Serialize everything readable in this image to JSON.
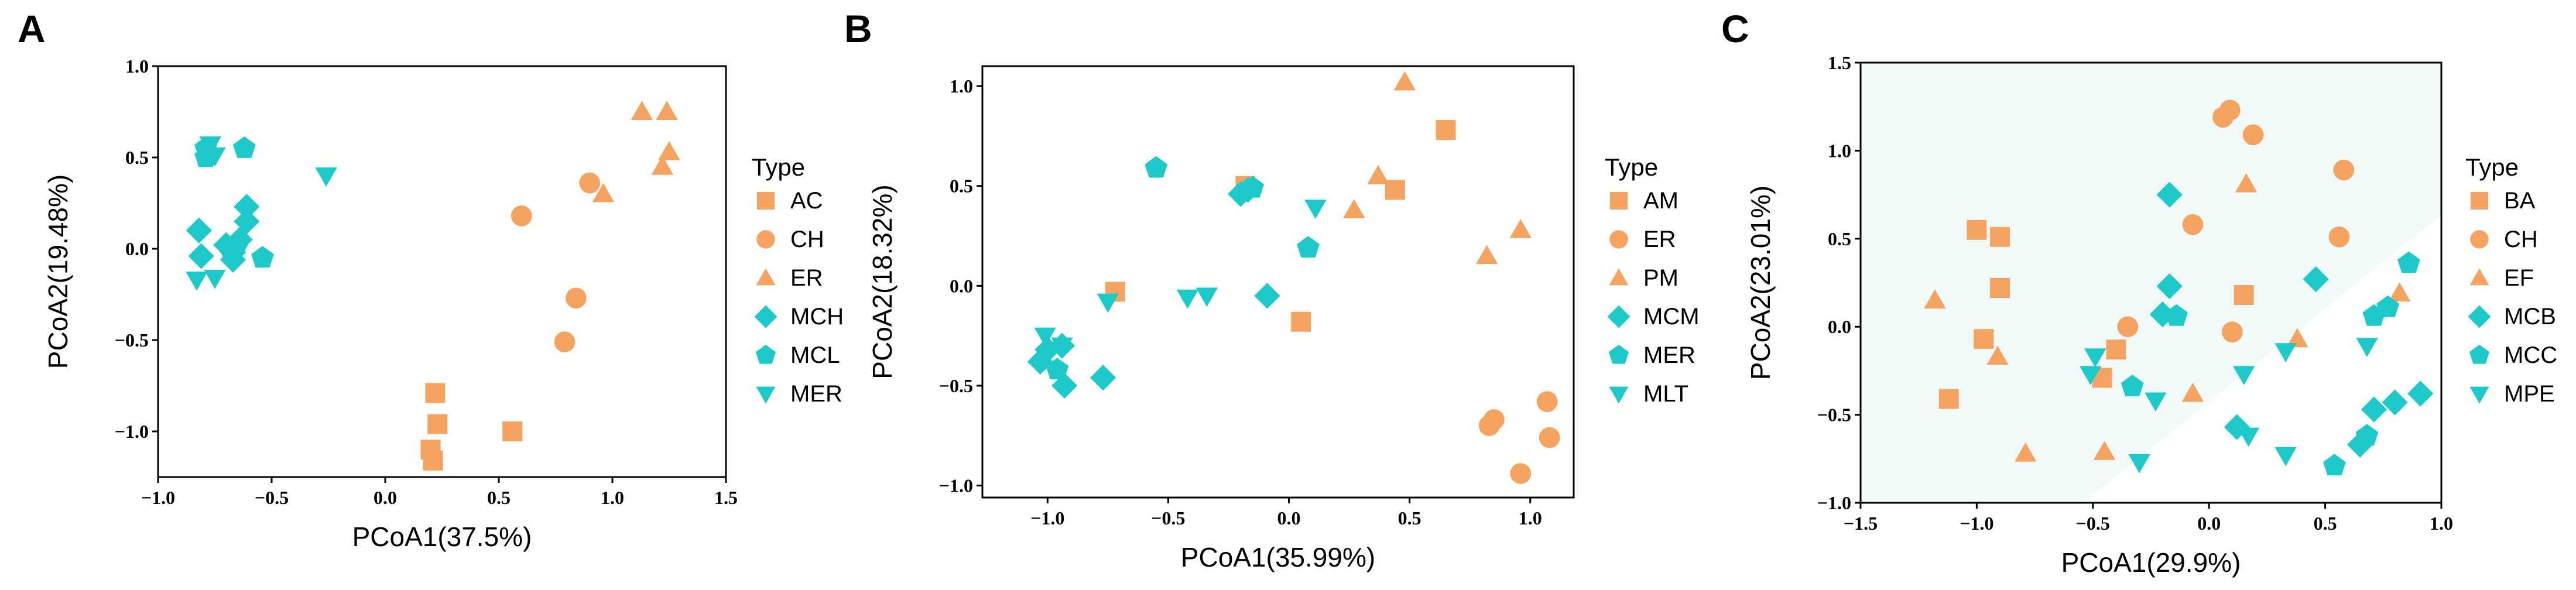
{
  "chart_data": [
    {
      "type": "scatter",
      "panel_label": "A",
      "xlabel": "PCoA1(37.5%)",
      "ylabel": "PCoA2(19.48%)",
      "xlim": [
        -1.0,
        1.5
      ],
      "ylim": [
        -1.25,
        1.0
      ],
      "xticks": [
        -1.0,
        -0.5,
        0.0,
        0.5,
        1.0,
        1.5
      ],
      "xtick_labels": [
        "−1.0",
        "−0.5",
        "0.0",
        "0.5",
        "1.0",
        "1.5"
      ],
      "yticks": [
        -1.0,
        -0.5,
        0.0,
        0.5,
        1.0
      ],
      "ytick_labels": [
        "−1.0",
        "−0.5",
        "0.0",
        "0.5",
        "1.0"
      ],
      "legend_title": "Type",
      "legend_position": "right",
      "series": [
        {
          "name": "AC",
          "shape": "square",
          "color": "#F4A460",
          "points": [
            [
              0.22,
              -0.79
            ],
            [
              0.23,
              -0.96
            ],
            [
              0.2,
              -1.1
            ],
            [
              0.21,
              -1.16
            ],
            [
              0.56,
              -1.0
            ]
          ]
        },
        {
          "name": "CH",
          "shape": "circle",
          "color": "#F4A460",
          "points": [
            [
              0.6,
              0.18
            ],
            [
              0.9,
              0.36
            ],
            [
              0.84,
              -0.27
            ],
            [
              0.79,
              -0.51
            ]
          ]
        },
        {
          "name": "ER",
          "shape": "triangle",
          "color": "#F4A460",
          "points": [
            [
              1.13,
              0.75
            ],
            [
              1.24,
              0.75
            ],
            [
              1.25,
              0.53
            ],
            [
              1.22,
              0.45
            ],
            [
              0.96,
              0.3
            ]
          ]
        },
        {
          "name": "MCH",
          "shape": "diamond",
          "color": "#1DC9C9",
          "points": [
            [
              -0.82,
              0.1
            ],
            [
              -0.81,
              -0.04
            ],
            [
              -0.7,
              0.02
            ],
            [
              -0.61,
              0.23
            ],
            [
              -0.61,
              0.15
            ],
            [
              -0.64,
              0.05
            ],
            [
              -0.67,
              -0.02
            ],
            [
              -0.67,
              -0.06
            ]
          ]
        },
        {
          "name": "MCL",
          "shape": "pentagon",
          "color": "#1DC9C9",
          "points": [
            [
              -0.79,
              0.55
            ],
            [
              -0.79,
              0.5
            ],
            [
              -0.62,
              0.55
            ],
            [
              -0.54,
              -0.05
            ],
            [
              -0.68,
              -0.01
            ]
          ]
        },
        {
          "name": "MER",
          "shape": "triangle-down",
          "color": "#1DC9C9",
          "points": [
            [
              -0.77,
              0.57
            ],
            [
              -0.75,
              0.51
            ],
            [
              -0.26,
              0.4
            ],
            [
              -0.83,
              -0.17
            ],
            [
              -0.75,
              -0.16
            ],
            [
              -0.65,
              -0.02
            ]
          ]
        }
      ]
    },
    {
      "type": "scatter",
      "panel_label": "B",
      "xlabel": "PCoA1(35.99%)",
      "ylabel": "PCoA2(18.32%)",
      "xlim": [
        -1.27,
        1.18
      ],
      "ylim": [
        -1.06,
        1.1
      ],
      "xticks": [
        -1.0,
        -0.5,
        0.0,
        0.5,
        1.0
      ],
      "xtick_labels": [
        "−1.0",
        "−0.5",
        "0.0",
        "0.5",
        "1.0"
      ],
      "yticks": [
        -1.0,
        -0.5,
        0.0,
        0.5,
        1.0
      ],
      "ytick_labels": [
        "−1.0",
        "−0.5",
        "0.0",
        "0.5",
        "1.0"
      ],
      "legend_title": "Type",
      "legend_position": "right",
      "series": [
        {
          "name": "AM",
          "shape": "square",
          "color": "#F4A460",
          "points": [
            [
              -0.72,
              -0.03
            ],
            [
              -0.18,
              0.5
            ],
            [
              0.05,
              -0.18
            ],
            [
              0.44,
              0.48
            ],
            [
              0.65,
              0.78
            ]
          ]
        },
        {
          "name": "ER",
          "shape": "circle",
          "color": "#F4A460",
          "points": [
            [
              0.83,
              -0.7
            ],
            [
              0.85,
              -0.67
            ],
            [
              0.96,
              -0.94
            ],
            [
              1.07,
              -0.58
            ],
            [
              1.08,
              -0.76
            ]
          ]
        },
        {
          "name": "PM",
          "shape": "triangle",
          "color": "#F4A460",
          "points": [
            [
              0.48,
              1.02
            ],
            [
              0.37,
              0.55
            ],
            [
              0.27,
              0.38
            ],
            [
              0.82,
              0.15
            ],
            [
              0.96,
              0.28
            ]
          ]
        },
        {
          "name": "MCM",
          "shape": "diamond",
          "color": "#1DC9C9",
          "points": [
            [
              -0.2,
              0.46
            ],
            [
              -0.17,
              0.48
            ],
            [
              -0.09,
              -0.05
            ],
            [
              -1.03,
              -0.38
            ],
            [
              -1.0,
              -0.32
            ],
            [
              -0.94,
              -0.3
            ],
            [
              -0.93,
              -0.5
            ],
            [
              -0.77,
              -0.46
            ]
          ]
        },
        {
          "name": "MER",
          "shape": "pentagon",
          "color": "#1DC9C9",
          "points": [
            [
              -0.55,
              0.59
            ],
            [
              -0.15,
              0.49
            ],
            [
              0.08,
              0.19
            ],
            [
              -0.96,
              -0.42
            ]
          ]
        },
        {
          "name": "MLT",
          "shape": "triangle-down",
          "color": "#1DC9C9",
          "points": [
            [
              -1.01,
              -0.25
            ],
            [
              -0.94,
              -0.3
            ],
            [
              -0.75,
              -0.08
            ],
            [
              -0.42,
              -0.06
            ],
            [
              -0.34,
              -0.05
            ],
            [
              0.11,
              0.39
            ]
          ]
        }
      ]
    },
    {
      "type": "scatter",
      "panel_label": "C",
      "xlabel": "PCoA1(29.9%)",
      "ylabel": "PCoA2(23.01%)",
      "xlim": [
        -1.5,
        1.0
      ],
      "ylim": [
        -1.0,
        1.5
      ],
      "xticks": [
        -1.5,
        -1.0,
        -0.5,
        0.0,
        0.5,
        1.0
      ],
      "xtick_labels": [
        "−1.5",
        "−1.0",
        "−0.5",
        "0.0",
        "0.5",
        "1.0"
      ],
      "yticks": [
        -1.0,
        -0.5,
        0.0,
        0.5,
        1.0,
        1.5
      ],
      "ytick_labels": [
        "−1.0",
        "−0.5",
        "0.0",
        "0.5",
        "1.0",
        "1.5"
      ],
      "legend_title": "Type",
      "legend_position": "right",
      "series": [
        {
          "name": "BA",
          "shape": "square",
          "color": "#F4A460",
          "points": [
            [
              -1.0,
              0.55
            ],
            [
              -0.9,
              0.51
            ],
            [
              -0.9,
              0.22
            ],
            [
              -0.97,
              -0.07
            ],
            [
              -1.12,
              -0.41
            ],
            [
              -0.46,
              -0.29
            ],
            [
              -0.4,
              -0.13
            ],
            [
              0.15,
              0.18
            ]
          ]
        },
        {
          "name": "CH",
          "shape": "circle",
          "color": "#F4A460",
          "points": [
            [
              0.06,
              1.19
            ],
            [
              0.09,
              1.23
            ],
            [
              0.19,
              1.09
            ],
            [
              -0.07,
              0.58
            ],
            [
              0.58,
              0.89
            ],
            [
              0.56,
              0.51
            ],
            [
              -0.35,
              0.0
            ],
            [
              0.1,
              -0.03
            ]
          ]
        },
        {
          "name": "EF",
          "shape": "triangle",
          "color": "#F4A460",
          "points": [
            [
              0.16,
              0.81
            ],
            [
              -1.18,
              0.15
            ],
            [
              -0.91,
              -0.17
            ],
            [
              -0.79,
              -0.72
            ],
            [
              -0.45,
              -0.71
            ],
            [
              -0.07,
              -0.38
            ],
            [
              0.38,
              -0.07
            ],
            [
              0.82,
              0.19
            ]
          ]
        },
        {
          "name": "MCB",
          "shape": "diamond",
          "color": "#1DC9C9",
          "points": [
            [
              -0.17,
              0.75
            ],
            [
              -0.17,
              0.23
            ],
            [
              0.46,
              0.27
            ],
            [
              -0.2,
              0.07
            ],
            [
              0.12,
              -0.57
            ],
            [
              0.65,
              -0.67
            ],
            [
              0.71,
              -0.47
            ],
            [
              0.8,
              -0.43
            ],
            [
              0.91,
              -0.38
            ]
          ]
        },
        {
          "name": "MCC",
          "shape": "pentagon",
          "color": "#1DC9C9",
          "points": [
            [
              0.86,
              0.36
            ],
            [
              0.71,
              0.06
            ],
            [
              0.77,
              0.11
            ],
            [
              -0.14,
              0.06
            ],
            [
              -0.33,
              -0.34
            ],
            [
              0.54,
              -0.79
            ],
            [
              0.68,
              -0.62
            ]
          ]
        },
        {
          "name": "MPE",
          "shape": "triangle-down",
          "color": "#1DC9C9",
          "points": [
            [
              -0.49,
              -0.17
            ],
            [
              -0.51,
              -0.27
            ],
            [
              -0.23,
              -0.42
            ],
            [
              -0.3,
              -0.77
            ],
            [
              0.15,
              -0.27
            ],
            [
              0.17,
              -0.62
            ],
            [
              0.33,
              -0.14
            ],
            [
              0.33,
              -0.73
            ],
            [
              0.68,
              -0.11
            ]
          ]
        }
      ]
    }
  ]
}
